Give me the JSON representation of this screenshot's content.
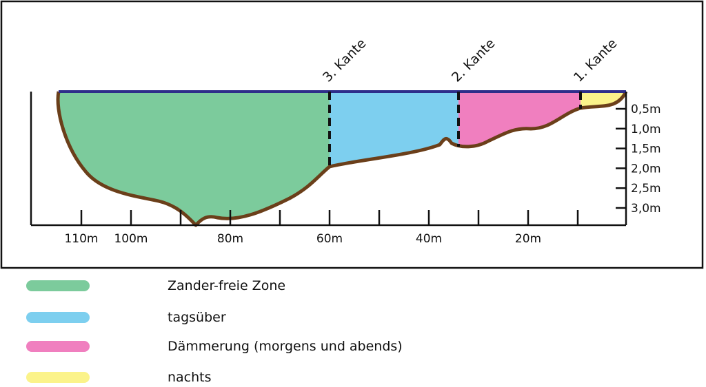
{
  "edges": [
    {
      "label": "3. Kante"
    },
    {
      "label": "2. Kante"
    },
    {
      "label": "1. Kante"
    }
  ],
  "distance_labels": [
    "110m",
    "100m",
    "80m",
    "60m",
    "40m",
    "20m"
  ],
  "depth_labels": [
    "0,5m",
    "1,0m",
    "1,5m",
    "2,0m",
    "2,5m",
    "3,0m"
  ],
  "legend": [
    {
      "label": "Zander-freie Zone"
    },
    {
      "label": "tagsüber"
    },
    {
      "label": "Dämmerung (morgens und abends)"
    },
    {
      "label": "nachts"
    }
  ]
}
